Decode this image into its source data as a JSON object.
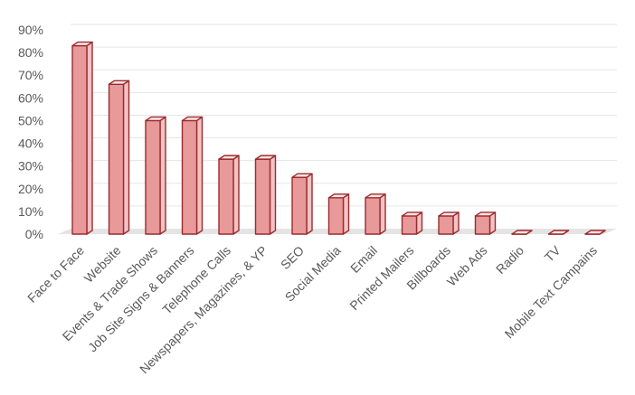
{
  "chart_data": {
    "type": "bar",
    "style": "3d-column",
    "categories": [
      "Face to Face",
      "Website",
      "Events & Trade Shows",
      "Job Site Signs & Banners",
      "Telephone Calls",
      "Newspapers, Magazines, & YP",
      "SEO",
      "Social Media",
      "Email",
      "Printed Mailers",
      "Billboards",
      "Web Ads",
      "Radio",
      "TV",
      "Mobile Text Campains"
    ],
    "values": [
      83,
      66,
      50,
      50,
      33,
      33,
      25,
      16,
      16,
      8,
      8,
      8,
      0,
      0,
      0
    ],
    "ylim": [
      0,
      90
    ],
    "yticks": [
      "0%",
      "10%",
      "20%",
      "30%",
      "40%",
      "50%",
      "60%",
      "70%",
      "80%",
      "90%"
    ],
    "grid": true,
    "legend": "none",
    "colors": {
      "bar_front": "#e8999a",
      "bar_side": "#f3c3c3",
      "bar_top": "#fbe4e4",
      "bar_edge": "#9b2b2e",
      "grid": "#e6e6e6",
      "floor": "#e4e4e4",
      "tick_text": "#595959"
    }
  }
}
